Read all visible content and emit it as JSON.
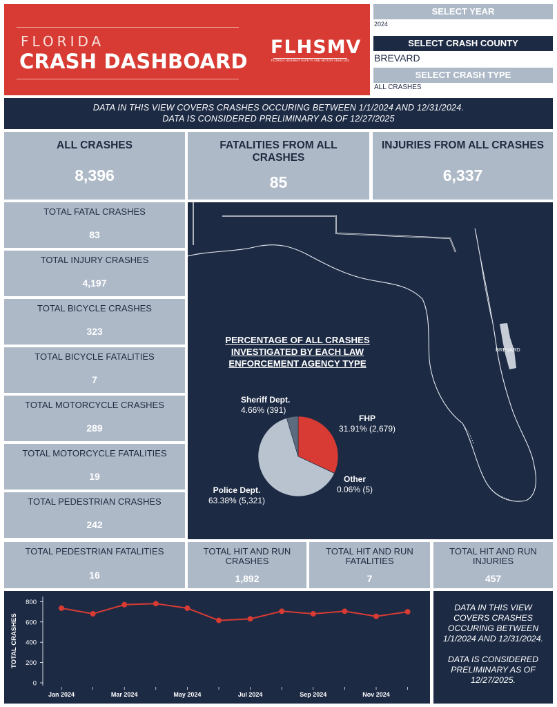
{
  "header": {
    "state": "FLORIDA",
    "title": "CRASH DASHBOARD",
    "logo_text": "FLHSMV",
    "logo_subtitle": "FLORIDA HIGHWAY SAFETY AND MOTOR VEHICLES"
  },
  "filters": {
    "year_label": "SELECT YEAR",
    "year_value": "2024",
    "county_label": "SELECT CRASH COUNTY",
    "county_value": "BREVARD",
    "type_label": "SELECT CRASH TYPE",
    "type_value": "ALL CRASHES"
  },
  "banner": {
    "line1": "DATA IN THIS VIEW COVERS CRASHES OCCURING BETWEEN 1/1/2024 AND 12/31/2024.",
    "line2": "DATA IS CONSIDERED PRELIMINARY AS OF 12/27/2025"
  },
  "kpis": [
    {
      "label": "ALL CRASHES",
      "value": "8,396"
    },
    {
      "label": "FATALITIES FROM ALL CRASHES",
      "value": "85"
    },
    {
      "label": "INJURIES FROM ALL CRASHES",
      "value": "6,337"
    }
  ],
  "stats": [
    {
      "label": "TOTAL FATAL CRASHES",
      "value": "83"
    },
    {
      "label": "TOTAL INJURY CRASHES",
      "value": "4,197"
    },
    {
      "label": "TOTAL BICYCLE CRASHES",
      "value": "323"
    },
    {
      "label": "TOTAL BICYCLE FATALITIES",
      "value": "7"
    },
    {
      "label": "TOTAL MOTORCYCLE CRASHES",
      "value": "289"
    },
    {
      "label": "TOTAL MOTORCYCLE FATALITIES",
      "value": "19"
    },
    {
      "label": "TOTAL PEDESTRIAN CRASHES",
      "value": "242"
    },
    {
      "label": "TOTAL PEDESTRIAN FATALITIES",
      "value": "16"
    }
  ],
  "hit_run": [
    {
      "label": "TOTAL HIT AND RUN CRASHES",
      "value": "1,892"
    },
    {
      "label": "TOTAL HIT AND RUN FATALITIES",
      "value": "7"
    },
    {
      "label": "TOTAL HIT AND RUN INJURIES",
      "value": "457"
    }
  ],
  "map": {
    "county_label": "BREVARD",
    "pie_title": "PERCENTAGE OF ALL CRASHES INVESTIGATED BY EACH LAW ENFORCEMENT AGENCY TYPE"
  },
  "colors": {
    "navy": "#1c2a44",
    "red": "#d73b33",
    "grey": "#aeb9c8",
    "pie_police": "#b9c3d0",
    "pie_sheriff": "#5d6b7e"
  },
  "chart_data": [
    {
      "type": "pie",
      "title": "PERCENTAGE OF ALL CRASHES INVESTIGATED BY EACH LAW ENFORCEMENT AGENCY TYPE",
      "slices": [
        {
          "name": "FHP",
          "percent": 31.91,
          "count": 2679,
          "label": "31.91% (2,679)"
        },
        {
          "name": "Other",
          "percent": 0.06,
          "count": 5,
          "label": "0.06% (5)"
        },
        {
          "name": "Police Dept.",
          "percent": 63.38,
          "count": 5321,
          "label": "63.38% (5,321)"
        },
        {
          "name": "Sheriff Dept.",
          "percent": 4.66,
          "count": 391,
          "label": "4.66% (391)"
        }
      ]
    },
    {
      "type": "line",
      "title": "",
      "xlabel": "",
      "ylabel": "TOTAL CRASHES",
      "ylim": [
        0,
        850
      ],
      "yticks": [
        0,
        200,
        400,
        600,
        800
      ],
      "tick_labels": [
        "Jan 2024",
        "Mar 2024",
        "May 2024",
        "Jul 2024",
        "Sep 2024",
        "Nov 2024"
      ],
      "x": [
        "Jan 2024",
        "Feb 2024",
        "Mar 2024",
        "Apr 2024",
        "May 2024",
        "Jun 2024",
        "Jul 2024",
        "Aug 2024",
        "Sep 2024",
        "Oct 2024",
        "Nov 2024",
        "Dec 2024"
      ],
      "values": [
        735,
        680,
        770,
        780,
        735,
        615,
        630,
        705,
        680,
        705,
        655,
        700
      ]
    }
  ],
  "note": {
    "text1": "DATA IN THIS VIEW COVERS CRASHES OCCURING BETWEEN 1/1/2024 AND 12/31/2024.",
    "text2": "DATA IS CONSIDERED PRELIMINARY AS OF 12/27/2025."
  }
}
